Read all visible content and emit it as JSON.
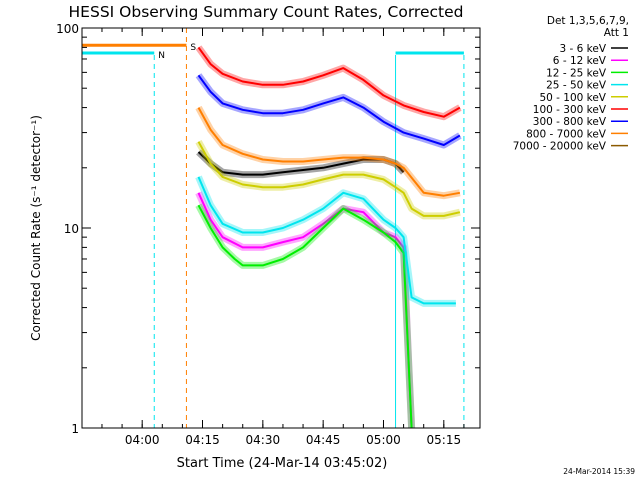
{
  "chart_data": {
    "type": "line",
    "title": "HESSI Observing Summary Count Rates, Corrected",
    "xlabel": "Start Time (24-Mar-14 03:45:02)",
    "ylabel": "Corrected Count Rate (s⁻¹ detector⁻¹)",
    "y_scale": "log",
    "ylim": [
      1,
      100
    ],
    "xlim": [
      "03:45:02",
      "05:24:00"
    ],
    "x_ticks": [
      "04:00",
      "04:15",
      "04:30",
      "04:45",
      "05:00",
      "05:15"
    ],
    "y_ticks": [
      "1",
      "10",
      "100"
    ],
    "legend_header": [
      "Det 1,3,5,6,7,9,",
      "Att 1"
    ],
    "legend_position": "right",
    "timestamp": "24-Mar-2014 15:39",
    "flags": [
      {
        "label": "N",
        "color": "#00e5ee",
        "segments": [
          [
            "03:45:02",
            "04:03:00"
          ],
          [
            "05:03:00",
            "05:20:00"
          ]
        ],
        "level": 75
      },
      {
        "label": "S",
        "color": "#ff7f00",
        "segments": [
          [
            "03:45:02",
            "04:11:00"
          ]
        ],
        "level": 82
      }
    ],
    "markers": [
      {
        "time": "04:03:00",
        "color": "#00e5ee",
        "style": "dashed"
      },
      {
        "time": "04:11:00",
        "color": "#ff7f00",
        "style": "dashed"
      },
      {
        "time": "05:03:00",
        "color": "#00e5ee",
        "style": "solid"
      },
      {
        "time": "05:20:00",
        "color": "#00e5ee",
        "style": "dashed"
      }
    ],
    "series": [
      {
        "name": "3 - 6 keV",
        "color": "#000000",
        "x": [
          "04:14",
          "04:17",
          "04:20",
          "04:25",
          "04:30",
          "04:35",
          "04:40",
          "04:45",
          "04:50",
          "04:55",
          "05:00",
          "05:03",
          "05:05"
        ],
        "values": [
          24,
          21,
          19,
          18.5,
          18.5,
          19,
          19.5,
          20,
          21,
          22,
          22,
          21,
          19
        ]
      },
      {
        "name": "6 - 12 keV",
        "color": "#ff00ff",
        "x": [
          "04:14",
          "04:17",
          "04:20",
          "04:25",
          "04:30",
          "04:35",
          "04:40",
          "04:45",
          "04:50",
          "04:55",
          "05:00",
          "05:03",
          "05:05",
          "05:07"
        ],
        "values": [
          15,
          11,
          9,
          8,
          8,
          8.5,
          9,
          10.5,
          12.5,
          12,
          9.5,
          9,
          8,
          1
        ]
      },
      {
        "name": "12 - 25 keV",
        "color": "#00ee00",
        "x": [
          "04:14",
          "04:17",
          "04:20",
          "04:23",
          "04:25",
          "04:30",
          "04:35",
          "04:40",
          "04:45",
          "04:50",
          "04:55",
          "05:00",
          "05:03",
          "05:05",
          "05:07"
        ],
        "values": [
          13,
          10,
          8,
          7,
          6.5,
          6.5,
          7,
          8,
          10,
          12.5,
          11,
          9.5,
          8.5,
          7.5,
          1
        ]
      },
      {
        "name": "25 - 50 keV",
        "color": "#00e5ee",
        "x": [
          "04:14",
          "04:17",
          "04:20",
          "04:25",
          "04:30",
          "04:35",
          "04:40",
          "04:45",
          "04:50",
          "04:55",
          "05:00",
          "05:03",
          "05:05",
          "05:07",
          "05:10",
          "05:15",
          "05:18"
        ],
        "values": [
          18,
          13,
          10.5,
          9.5,
          9.5,
          10,
          11,
          12.5,
          15,
          14,
          11,
          10,
          9,
          4.5,
          4.2,
          4.2,
          4.2
        ]
      },
      {
        "name": "50 - 100 keV",
        "color": "#cdcd00",
        "x": [
          "04:14",
          "04:17",
          "04:20",
          "04:25",
          "04:30",
          "04:35",
          "04:40",
          "04:45",
          "04:50",
          "04:55",
          "05:00",
          "05:03",
          "05:05",
          "05:07",
          "05:10",
          "05:15",
          "05:19"
        ],
        "values": [
          27,
          21,
          18,
          16.5,
          16,
          16,
          16.5,
          17.5,
          18.5,
          18.5,
          17.5,
          16,
          15,
          12.5,
          11.5,
          11.5,
          12
        ]
      },
      {
        "name": "100 - 300 keV",
        "color": "#ff0000",
        "x": [
          "04:14",
          "04:17",
          "04:20",
          "04:25",
          "04:30",
          "04:35",
          "04:40",
          "04:45",
          "04:50",
          "04:55",
          "05:00",
          "05:05",
          "05:10",
          "05:15",
          "05:19"
        ],
        "values": [
          80,
          66,
          59,
          54,
          52,
          52,
          54,
          58,
          63,
          55,
          46,
          41,
          38,
          36,
          40
        ]
      },
      {
        "name": "300 - 800 keV",
        "color": "#0000ff",
        "x": [
          "04:14",
          "04:17",
          "04:20",
          "04:25",
          "04:30",
          "04:35",
          "04:40",
          "04:45",
          "04:50",
          "04:55",
          "05:00",
          "05:05",
          "05:10",
          "05:15",
          "05:19"
        ],
        "values": [
          58,
          48,
          42,
          39,
          37.5,
          37.5,
          39,
          42,
          45,
          40,
          34,
          30,
          28,
          26,
          29
        ]
      },
      {
        "name": "800 - 7000 keV",
        "color": "#ff7f00",
        "x": [
          "04:14",
          "04:17",
          "04:20",
          "04:25",
          "04:30",
          "04:35",
          "04:40",
          "04:45",
          "04:50",
          "04:55",
          "05:00",
          "05:03",
          "05:05",
          "05:10",
          "05:15",
          "05:19"
        ],
        "values": [
          40,
          31,
          26,
          23.5,
          22,
          21.5,
          21.5,
          22,
          22.5,
          22.5,
          22,
          21,
          20,
          15,
          14.5,
          15
        ]
      },
      {
        "name": "7000 - 20000 keV",
        "color": "#8b5a00",
        "x": [],
        "values": []
      }
    ]
  }
}
